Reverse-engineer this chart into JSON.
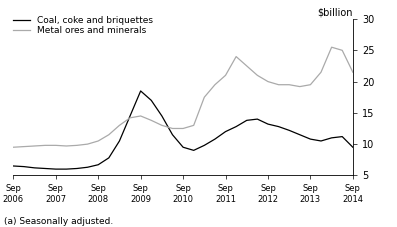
{
  "ylabel": "$billion",
  "footnote": "(a) Seasonally adjusted.",
  "ylim": [
    5,
    30
  ],
  "yticks": [
    5,
    10,
    15,
    20,
    25,
    30
  ],
  "x_labels": [
    "Sep\n2006",
    "Sep\n2007",
    "Sep\n2008",
    "Sep\n2009",
    "Sep\n2010",
    "Sep\n2011",
    "Sep\n2012",
    "Sep\n2013",
    "Sep\n2014"
  ],
  "coal_color": "#000000",
  "metal_color": "#aaaaaa",
  "coal_label": "Coal, coke and briquettes",
  "metal_label": "Metal ores and minerals",
  "coal_y": [
    6.5,
    6.4,
    6.2,
    6.1,
    6.0,
    6.0,
    6.1,
    6.3,
    6.7,
    7.8,
    10.5,
    14.5,
    18.5,
    17.0,
    14.5,
    11.5,
    9.5,
    9.0,
    9.8,
    10.8,
    12.0,
    12.8,
    13.8,
    14.0,
    13.2,
    12.8,
    12.2,
    11.5,
    10.8,
    10.5,
    11.0,
    11.2,
    9.5
  ],
  "metal_y": [
    9.5,
    9.6,
    9.7,
    9.8,
    9.8,
    9.7,
    9.8,
    10.0,
    10.5,
    11.5,
    13.0,
    14.2,
    14.5,
    13.8,
    13.0,
    12.5,
    12.5,
    13.0,
    17.5,
    19.5,
    21.0,
    24.0,
    22.5,
    21.0,
    20.0,
    19.5,
    19.5,
    19.2,
    19.5,
    21.5,
    25.5,
    25.0,
    21.5
  ]
}
